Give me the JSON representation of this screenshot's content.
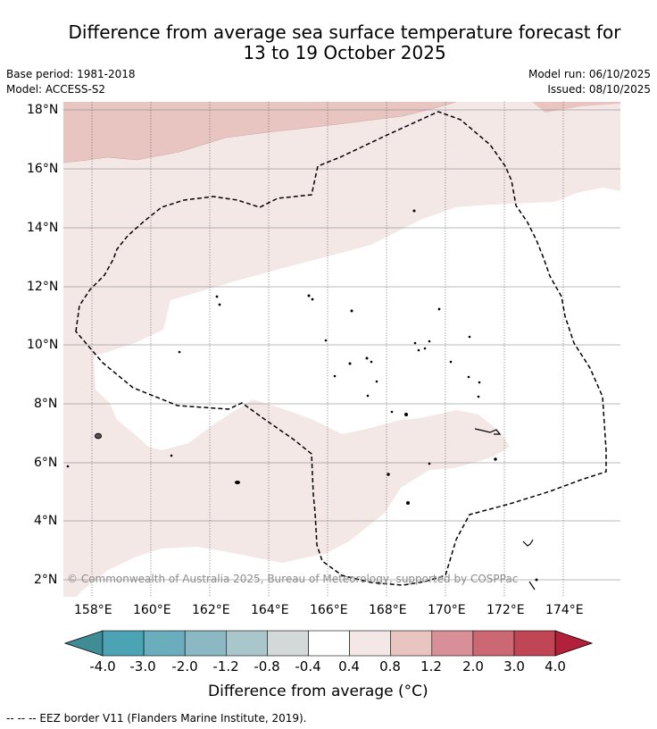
{
  "title_line1": "Difference from average sea surface temperature forecast for",
  "title_line2": "13 to 19 October 2025",
  "base_period": "Base period: 1981-2018",
  "model": "Model: ACCESS-S2",
  "model_run": "Model run: 06/10/2025",
  "issued": "Issued: 08/10/2025",
  "copyright": "© Commonwealth of Australia 2025, Bureau of Meteorology, supported by COSPPac",
  "lon_ticks": [
    "158°E",
    "160°E",
    "162°E",
    "164°E",
    "166°E",
    "168°E",
    "170°E",
    "172°E",
    "174°E"
  ],
  "lat_ticks": [
    "18°N",
    "16°N",
    "14°N",
    "12°N",
    "10°N",
    "8°N",
    "6°N",
    "4°N",
    "2°N"
  ],
  "colorbar": {
    "label": "Difference from average (°C)",
    "ticks": [
      "-4.0",
      "-3.0",
      "-2.0",
      "-1.2",
      "-0.8",
      "-0.4",
      "0.4",
      "0.8",
      "1.2",
      "2.0",
      "3.0",
      "4.0"
    ],
    "colors": [
      "#3f8b96",
      "#4ba3b4",
      "#6aaebd",
      "#8bb8c3",
      "#a9c7cb",
      "#d3d9d9",
      "#ffffff",
      "#f4e8e7",
      "#e9c5c2",
      "#d98f97",
      "#cc6873",
      "#c04655",
      "#b22039"
    ]
  },
  "footer": "-- -- -- EEZ border V11 (Flanders Marine Institute, 2019)."
}
